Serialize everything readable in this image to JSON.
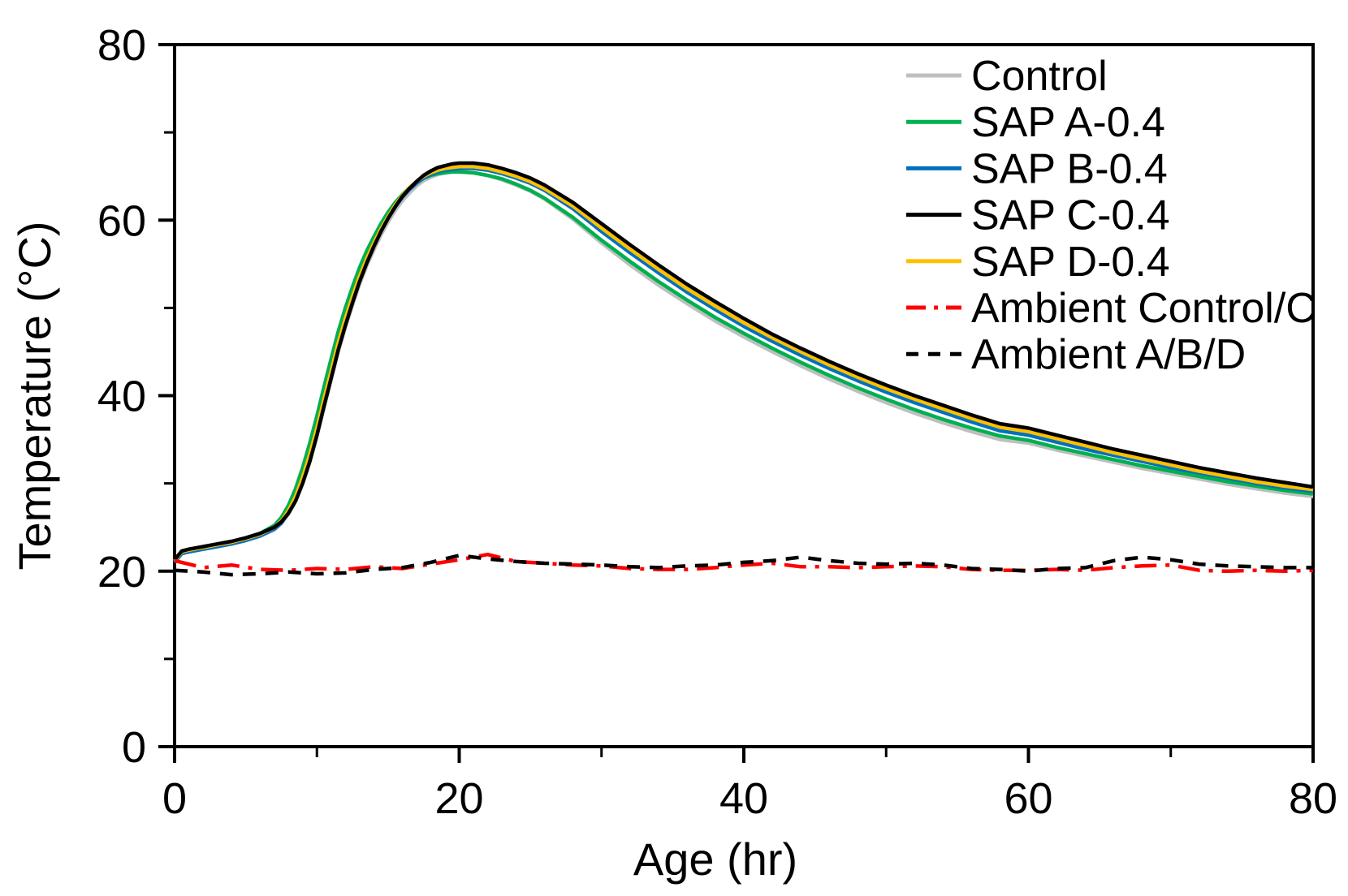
{
  "figure": {
    "background": "#ffffff",
    "frame_color": "#000000"
  },
  "chart_data": {
    "type": "line",
    "title": "",
    "xlabel": "Age (hr)",
    "ylabel": "Temperature (°C)",
    "xlim": [
      0,
      80
    ],
    "ylim": [
      0,
      80
    ],
    "x_major_ticks": [
      0,
      20,
      40,
      60,
      80
    ],
    "x_minor_ticks": [
      10,
      30,
      50,
      70
    ],
    "y_major_ticks": [
      0,
      20,
      40,
      60,
      80
    ],
    "y_minor_ticks": [
      10,
      30,
      50,
      70
    ],
    "grid": false,
    "frame": "box",
    "legend_position": "upper-right-inside",
    "draw_order": [
      0,
      1,
      2,
      4,
      3,
      5,
      6
    ],
    "x": [
      0,
      0.5,
      1,
      2,
      3,
      4,
      5,
      6,
      7,
      7.5,
      8,
      8.5,
      9,
      9.5,
      10,
      10.5,
      11,
      11.5,
      12,
      12.5,
      13,
      13.5,
      14,
      14.5,
      15,
      15.5,
      16,
      16.5,
      17,
      17.5,
      18,
      18.5,
      19,
      19.5,
      20,
      21,
      22,
      23,
      24,
      25,
      26,
      28,
      30,
      32,
      34,
      36,
      38,
      40,
      42,
      44,
      46,
      48,
      50,
      52,
      54,
      56,
      58,
      60,
      62,
      64,
      66,
      68,
      70,
      72,
      74,
      76,
      78,
      80
    ],
    "series": [
      {
        "name": "Control",
        "color": "#BFBFBF",
        "style": "solid",
        "y": [
          21.0,
          22.0,
          22.2,
          22.5,
          22.8,
          23.1,
          23.5,
          24.0,
          24.7,
          25.4,
          26.5,
          28.0,
          30.0,
          32.5,
          35.4,
          38.6,
          41.8,
          45.0,
          47.8,
          50.3,
          52.7,
          54.8,
          56.6,
          58.3,
          59.8,
          61.1,
          62.2,
          63.1,
          63.9,
          64.5,
          64.9,
          65.2,
          65.4,
          65.5,
          65.5,
          65.4,
          65.1,
          64.6,
          64.0,
          63.3,
          62.4,
          60.1,
          57.4,
          54.9,
          52.6,
          50.5,
          48.5,
          46.7,
          45.0,
          43.4,
          41.9,
          40.5,
          39.2,
          38.0,
          36.9,
          35.9,
          35.0,
          34.6,
          33.8,
          33.1,
          32.4,
          31.7,
          31.1,
          30.5,
          29.9,
          29.4,
          28.9,
          28.5
        ]
      },
      {
        "name": "SAP A-0.4",
        "color": "#00B050",
        "style": "solid",
        "y": [
          21.1,
          22.1,
          22.3,
          22.6,
          22.9,
          23.3,
          23.7,
          24.3,
          25.2,
          26.1,
          27.5,
          29.4,
          31.8,
          34.6,
          37.7,
          41.0,
          44.2,
          47.3,
          50.0,
          52.4,
          54.6,
          56.5,
          58.1,
          59.6,
          60.9,
          62.0,
          62.9,
          63.7,
          64.3,
          64.8,
          65.1,
          65.3,
          65.4,
          65.5,
          65.5,
          65.4,
          65.1,
          64.7,
          64.1,
          63.4,
          62.5,
          60.3,
          57.7,
          55.3,
          53.0,
          50.9,
          48.9,
          47.1,
          45.4,
          43.8,
          42.3,
          40.9,
          39.6,
          38.4,
          37.3,
          36.3,
          35.4,
          34.9,
          34.1,
          33.4,
          32.7,
          32.0,
          31.4,
          30.8,
          30.2,
          29.7,
          29.2,
          28.8
        ]
      },
      {
        "name": "SAP B-0.4",
        "color": "#0070C0",
        "style": "solid",
        "y": [
          21.0,
          22.0,
          22.2,
          22.5,
          22.8,
          23.1,
          23.5,
          24.0,
          24.8,
          25.5,
          26.7,
          28.3,
          30.4,
          33.0,
          36.0,
          39.3,
          42.5,
          45.7,
          48.5,
          51.0,
          53.3,
          55.3,
          57.1,
          58.8,
          60.2,
          61.5,
          62.6,
          63.5,
          64.2,
          64.8,
          65.2,
          65.5,
          65.7,
          65.8,
          65.9,
          65.9,
          65.7,
          65.3,
          64.8,
          64.2,
          63.4,
          61.3,
          58.7,
          56.3,
          54.0,
          51.8,
          49.8,
          47.9,
          46.2,
          44.6,
          43.1,
          41.7,
          40.4,
          39.2,
          38.1,
          37.0,
          36.0,
          35.5,
          34.7,
          33.9,
          33.2,
          32.5,
          31.8,
          31.2,
          30.6,
          30.0,
          29.5,
          29.1
        ]
      },
      {
        "name": "SAP C-0.4",
        "color": "#000000",
        "style": "solid",
        "y": [
          21.3,
          22.3,
          22.5,
          22.8,
          23.1,
          23.4,
          23.8,
          24.3,
          25.0,
          25.6,
          26.6,
          28.0,
          30.0,
          32.5,
          35.5,
          38.8,
          42.0,
          45.2,
          48.0,
          50.6,
          53.0,
          55.1,
          57.0,
          58.7,
          60.2,
          61.5,
          62.7,
          63.6,
          64.4,
          65.1,
          65.6,
          66.0,
          66.2,
          66.4,
          66.5,
          66.5,
          66.3,
          65.9,
          65.4,
          64.8,
          64.0,
          62.0,
          59.6,
          57.2,
          54.9,
          52.7,
          50.7,
          48.8,
          47.0,
          45.4,
          43.9,
          42.5,
          41.2,
          40.0,
          38.9,
          37.8,
          36.8,
          36.3,
          35.5,
          34.7,
          33.9,
          33.2,
          32.5,
          31.8,
          31.2,
          30.6,
          30.1,
          29.6
        ]
      },
      {
        "name": "SAP D-0.4",
        "color": "#FFC000",
        "style": "solid",
        "y": [
          21.2,
          22.2,
          22.4,
          22.7,
          23.0,
          23.3,
          23.7,
          24.2,
          25.0,
          25.7,
          26.9,
          28.5,
          30.7,
          33.3,
          36.3,
          39.6,
          42.8,
          46.0,
          48.8,
          51.3,
          53.6,
          55.6,
          57.4,
          59.0,
          60.4,
          61.7,
          62.8,
          63.7,
          64.4,
          65.0,
          65.4,
          65.7,
          65.9,
          66.0,
          66.1,
          66.1,
          65.9,
          65.5,
          65.0,
          64.4,
          63.6,
          61.6,
          59.1,
          56.7,
          54.4,
          52.2,
          50.2,
          48.3,
          46.6,
          45.0,
          43.5,
          42.1,
          40.8,
          39.6,
          38.5,
          37.4,
          36.4,
          35.9,
          35.1,
          34.3,
          33.5,
          32.8,
          32.1,
          31.4,
          30.8,
          30.2,
          29.7,
          29.3
        ]
      },
      {
        "name": "Ambient Control/C",
        "color": "#FF0000",
        "style": "dashdot",
        "x": [
          0,
          2,
          4,
          6,
          8,
          10,
          12,
          14,
          16,
          18,
          20,
          22,
          24,
          26,
          28,
          30,
          32,
          34,
          36,
          38,
          40,
          42,
          44,
          46,
          48,
          50,
          52,
          54,
          56,
          58,
          60,
          62,
          64,
          66,
          68,
          70,
          72,
          74,
          76,
          78,
          80
        ],
        "y": [
          21.2,
          20.4,
          20.7,
          20.2,
          20.1,
          20.3,
          20.2,
          20.5,
          20.3,
          20.8,
          21.3,
          21.9,
          21.1,
          20.9,
          20.7,
          20.6,
          20.3,
          20.2,
          20.2,
          20.4,
          20.7,
          20.9,
          20.5,
          20.5,
          20.4,
          20.5,
          20.6,
          20.5,
          20.2,
          20.1,
          20.1,
          20.2,
          20.1,
          20.4,
          20.6,
          20.7,
          20.1,
          20.0,
          20.1,
          20.0,
          20.1
        ]
      },
      {
        "name": "Ambient A/B/D",
        "color": "#000000",
        "style": "dashed",
        "x": [
          0,
          2,
          4,
          6,
          8,
          10,
          12,
          14,
          16,
          18,
          20,
          22,
          24,
          26,
          28,
          30,
          32,
          34,
          36,
          38,
          40,
          42,
          44,
          46,
          48,
          50,
          52,
          54,
          56,
          58,
          60,
          62,
          64,
          66,
          68,
          70,
          72,
          74,
          76,
          78,
          80
        ],
        "y": [
          20.1,
          19.9,
          19.6,
          19.7,
          19.9,
          19.7,
          19.8,
          20.2,
          20.4,
          21.0,
          21.8,
          21.4,
          21.1,
          20.9,
          20.8,
          20.7,
          20.5,
          20.4,
          20.6,
          20.7,
          21.0,
          21.2,
          21.6,
          21.2,
          20.9,
          20.8,
          20.9,
          20.7,
          20.3,
          20.2,
          20.0,
          20.3,
          20.4,
          21.2,
          21.6,
          21.3,
          20.8,
          20.6,
          20.5,
          20.4,
          20.4
        ]
      }
    ]
  }
}
